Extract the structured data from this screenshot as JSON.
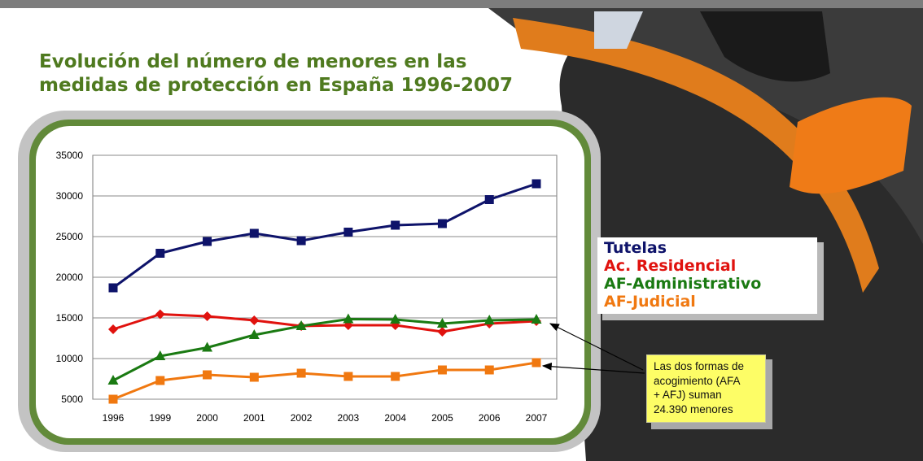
{
  "slide": {
    "title": "Evolución del número de menores en las\nmedidas de protección en España 1996-2007",
    "note": "Las dos formas de\nacogimiento (AFA\n+ AFJ) suman\n24.390 menores"
  },
  "colors": {
    "background": "#7d7d7d",
    "title": "#4f7a1f",
    "orange_band": "#e07c1c",
    "frame_green": "#628a3a",
    "note_fill": "#fdfd66"
  },
  "legend": [
    {
      "label": "Tutelas",
      "color": "#0e136a"
    },
    {
      "label": "Ac. Residencial",
      "color": "#e0120e"
    },
    {
      "label": "AF-Administrativo",
      "color": "#1a7a12"
    },
    {
      "label": "AF-Judicial",
      "color": "#f07810"
    }
  ],
  "chart_data": {
    "type": "line",
    "categories": [
      "1996",
      "1999",
      "2000",
      "2001",
      "2002",
      "2003",
      "2004",
      "2005",
      "2006",
      "2007"
    ],
    "ylim": [
      5000,
      35000
    ],
    "yticks": [
      5000,
      10000,
      15000,
      20000,
      25000,
      30000,
      35000
    ],
    "grid": true,
    "legend_position": "right",
    "series": [
      {
        "name": "Tutelas",
        "color": "#0e136a",
        "marker": "square",
        "values": [
          18700,
          22950,
          24400,
          25400,
          24500,
          25550,
          26400,
          26600,
          29550,
          31500
        ]
      },
      {
        "name": "Ac. Residencial",
        "color": "#e0120e",
        "marker": "diamond",
        "values": [
          13600,
          15450,
          15200,
          14700,
          14000,
          14100,
          14100,
          13300,
          14300,
          14600
        ]
      },
      {
        "name": "AF-Administrativo",
        "color": "#1a7a12",
        "marker": "triangle",
        "values": [
          7300,
          10300,
          11350,
          12900,
          14000,
          14850,
          14800,
          14300,
          14700,
          14800
        ]
      },
      {
        "name": "AF-Judicial",
        "color": "#f07810",
        "marker": "square",
        "values": [
          5000,
          7300,
          8000,
          7700,
          8200,
          7800,
          7800,
          8600,
          8600,
          9500
        ]
      }
    ]
  }
}
